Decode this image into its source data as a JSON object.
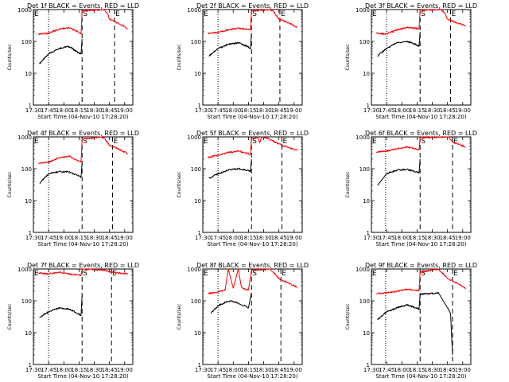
{
  "chart_data": [
    {
      "type": "line",
      "title": "Det 1f BLACK = Events, RED = LLD",
      "xlabel": "Start Time (04-Nov-10 17:28:20)",
      "ylabel": "Counts/sec",
      "xticks": [
        "17:30",
        "17:45",
        "18:00",
        "18:15",
        "18:30",
        "18:45",
        "19:00"
      ],
      "yticks": [
        "1",
        "10",
        "100",
        "1000"
      ],
      "yscale": "log",
      "ylim": [
        1,
        1000
      ],
      "markers": [
        {
          "time": "17:45",
          "style": "dotted",
          "label": ""
        },
        {
          "time": "18:18",
          "style": "dashed",
          "label": "S"
        },
        {
          "time": "18:50",
          "style": "dashed",
          "label": "E"
        }
      ],
      "start_label": "E",
      "series": [
        {
          "name": "Events",
          "color": "#000000",
          "x": [
            "17:36",
            "17:45",
            "17:55",
            "18:05",
            "18:14",
            "18:17",
            "18:18"
          ],
          "y": [
            20,
            40,
            60,
            70,
            45,
            40,
            120
          ]
        },
        {
          "name": "LLD",
          "color": "#ff0000",
          "x": [
            "17:35",
            "17:45",
            "17:55",
            "18:05",
            "18:14",
            "18:17",
            "18:18",
            "18:40",
            "18:43",
            "18:45",
            "18:55",
            "19:03"
          ],
          "y": [
            170,
            180,
            240,
            270,
            200,
            170,
            900,
            1000,
            750,
            500,
            350,
            250
          ]
        }
      ]
    },
    {
      "type": "line",
      "title": "Det 2f BLACK = Events, RED = LLD",
      "xlabel": "Start Time (04-Nov-10 17:28:20)",
      "ylabel": "Counts/sec",
      "xticks": [
        "17:30",
        "17:45",
        "18:00",
        "18:15",
        "18:30",
        "18:45",
        "19:00"
      ],
      "yticks": [
        "1",
        "10",
        "100",
        "1000"
      ],
      "yscale": "log",
      "ylim": [
        1,
        1000
      ],
      "markers": [
        {
          "time": "17:45",
          "style": "dotted",
          "label": ""
        },
        {
          "time": "18:18",
          "style": "dashed",
          "label": "S"
        },
        {
          "time": "18:46",
          "style": "dashed",
          "label": "E"
        }
      ],
      "start_label": "E",
      "series": [
        {
          "name": "Events",
          "color": "#000000",
          "x": [
            "17:36",
            "17:45",
            "17:55",
            "18:05",
            "18:14",
            "18:17",
            "18:18"
          ],
          "y": [
            35,
            60,
            80,
            90,
            70,
            60,
            180
          ]
        },
        {
          "name": "LLD",
          "color": "#ff0000",
          "x": [
            "17:35",
            "17:45",
            "17:55",
            "18:05",
            "18:14",
            "18:17",
            "18:18",
            "18:36",
            "18:40",
            "18:45",
            "18:55",
            "19:03"
          ],
          "y": [
            180,
            190,
            230,
            260,
            240,
            230,
            900,
            1000,
            850,
            500,
            380,
            280
          ]
        }
      ]
    },
    {
      "type": "line",
      "title": "Det 3f BLACK = Events, RED = LLD",
      "xlabel": "Start Time (04-Nov-10 17:28:20)",
      "ylabel": "Counts/sec",
      "xticks": [
        "17:30",
        "17:45",
        "18:00",
        "18:15",
        "18:30",
        "18:45",
        "19:00"
      ],
      "yticks": [
        "1",
        "10",
        "100",
        "1000"
      ],
      "yscale": "log",
      "ylim": [
        1,
        1000
      ],
      "markers": [
        {
          "time": "17:45",
          "style": "dotted",
          "label": ""
        },
        {
          "time": "18:18",
          "style": "dashed",
          "label": "S"
        },
        {
          "time": "18:48",
          "style": "dashed",
          "label": "E"
        }
      ],
      "start_label": "E",
      "series": [
        {
          "name": "Events",
          "color": "#000000",
          "x": [
            "17:36",
            "17:45",
            "17:55",
            "18:05",
            "18:14",
            "18:17",
            "18:18"
          ],
          "y": [
            35,
            60,
            90,
            100,
            80,
            70,
            200
          ]
        },
        {
          "name": "LLD",
          "color": "#ff0000",
          "x": [
            "17:35",
            "17:45",
            "17:55",
            "18:05",
            "18:14",
            "18:17",
            "18:18",
            "18:38",
            "18:42",
            "18:45",
            "18:55",
            "19:03"
          ],
          "y": [
            180,
            170,
            230,
            270,
            260,
            250,
            950,
            1000,
            800,
            500,
            380,
            300
          ]
        }
      ]
    },
    {
      "type": "line",
      "title": "Det 4f BLACK = Events, RED = LLD",
      "xlabel": "Start Time (04-Nov-10 17:28:20)",
      "ylabel": "Counts/sec",
      "xticks": [
        "17:30",
        "17:45",
        "18:00",
        "18:15",
        "18:30",
        "18:45",
        "19:00"
      ],
      "yticks": [
        "1",
        "10",
        "100",
        "1000"
      ],
      "yscale": "log",
      "ylim": [
        1,
        1000
      ],
      "markers": [
        {
          "time": "17:45",
          "style": "dotted",
          "label": ""
        },
        {
          "time": "18:18",
          "style": "dashed",
          "label": "S"
        },
        {
          "time": "18:48",
          "style": "dashed",
          "label": "E"
        }
      ],
      "start_label": "E",
      "series": [
        {
          "name": "Events",
          "color": "#000000",
          "x": [
            "17:36",
            "17:45",
            "17:55",
            "18:05",
            "18:14",
            "18:17",
            "18:18"
          ],
          "y": [
            35,
            70,
            80,
            80,
            60,
            55,
            150
          ]
        },
        {
          "name": "LLD",
          "color": "#ff0000",
          "x": [
            "17:35",
            "17:45",
            "17:55",
            "18:05",
            "18:14",
            "18:17",
            "18:18",
            "18:36",
            "18:40",
            "18:45",
            "18:55",
            "19:03"
          ],
          "y": [
            150,
            160,
            220,
            250,
            180,
            160,
            850,
            1000,
            900,
            550,
            400,
            300
          ]
        }
      ]
    },
    {
      "type": "line",
      "title": "Det 5f BLACK = Events, RED = LLD",
      "xlabel": "Start Time (04-Nov-10 17:28:20)",
      "ylabel": "Counts/sec",
      "xticks": [
        "17:30",
        "17:45",
        "18:00",
        "18:15",
        "18:30",
        "18:45",
        "19:00"
      ],
      "yticks": [
        "1",
        "10",
        "100",
        "1000"
      ],
      "yscale": "log",
      "ylim": [
        1,
        1000
      ],
      "markers": [
        {
          "time": "17:45",
          "style": "dotted",
          "label": ""
        },
        {
          "time": "18:18",
          "style": "dashed",
          "label": "S"
        },
        {
          "time": "18:48",
          "style": "dashed",
          "label": "E"
        }
      ],
      "start_label": "E",
      "series": [
        {
          "name": "Events",
          "color": "#000000",
          "x": [
            "17:36",
            "17:45",
            "17:55",
            "18:05",
            "18:14",
            "18:17",
            "18:18"
          ],
          "y": [
            50,
            70,
            90,
            100,
            90,
            80,
            200
          ]
        },
        {
          "name": "LLD",
          "color": "#ff0000",
          "x": [
            "17:35",
            "17:45",
            "17:55",
            "18:05",
            "18:14",
            "18:17",
            "18:18",
            "18:24",
            "18:26",
            "18:28",
            "18:32",
            "18:45",
            "18:55",
            "19:03"
          ],
          "y": [
            230,
            260,
            320,
            360,
            300,
            280,
            850,
            1000,
            650,
            1000,
            950,
            600,
            450,
            380
          ]
        }
      ]
    },
    {
      "type": "line",
      "title": "Det 6f BLACK = Events, RED = LLD",
      "xlabel": "Start Time (04-Nov-10 17:28:20)",
      "ylabel": "Counts/sec",
      "xticks": [
        "17:30",
        "17:45",
        "18:00",
        "18:15",
        "18:30",
        "18:45",
        "19:00"
      ],
      "yticks": [
        "1",
        "10",
        "100",
        "1000"
      ],
      "yscale": "log",
      "ylim": [
        1,
        1000
      ],
      "markers": [
        {
          "time": "17:44",
          "style": "dotted",
          "label": ""
        },
        {
          "time": "18:18",
          "style": "dashed",
          "label": "S"
        },
        {
          "time": "18:50",
          "style": "dashed",
          "label": "E"
        }
      ],
      "start_label": "E",
      "series": [
        {
          "name": "Events",
          "color": "#000000",
          "x": [
            "17:36",
            "17:45",
            "17:55",
            "18:05",
            "18:14",
            "18:17",
            "18:18"
          ],
          "y": [
            30,
            70,
            90,
            95,
            80,
            75,
            200
          ]
        },
        {
          "name": "LLD",
          "color": "#ff0000",
          "x": [
            "17:35",
            "17:45",
            "17:55",
            "18:05",
            "18:14",
            "18:17",
            "18:18",
            "18:46",
            "18:50",
            "18:55",
            "19:03"
          ],
          "y": [
            330,
            360,
            420,
            480,
            420,
            400,
            950,
            1000,
            700,
            600,
            480
          ]
        }
      ]
    },
    {
      "type": "line",
      "title": "Det 7f BLACK = Events, RED = LLD",
      "xlabel": "Start Time (04-Nov-10 17:28:20)",
      "ylabel": "Counts/sec",
      "xticks": [
        "17:30",
        "17:45",
        "18:00",
        "18:15",
        "18:30",
        "18:45",
        "19:00"
      ],
      "yticks": [
        "1",
        "10",
        "100",
        "1000"
      ],
      "yscale": "log",
      "ylim": [
        1,
        1000
      ],
      "markers": [
        {
          "time": "17:45",
          "style": "dotted",
          "label": ""
        },
        {
          "time": "18:18",
          "style": "dashed",
          "label": "S"
        },
        {
          "time": "18:47",
          "style": "dashed",
          "label": "E"
        }
      ],
      "start_label": "E",
      "series": [
        {
          "name": "Events",
          "color": "#000000",
          "x": [
            "17:36",
            "17:45",
            "17:55",
            "18:05",
            "18:14",
            "18:17",
            "18:18"
          ],
          "y": [
            30,
            45,
            60,
            55,
            40,
            35,
            150
          ]
        },
        {
          "name": "LLD",
          "color": "#ff0000",
          "x": [
            "17:35",
            "17:45",
            "17:55",
            "18:05",
            "18:14",
            "18:17",
            "18:18",
            "18:42",
            "18:45",
            "18:55",
            "19:03"
          ],
          "y": [
            750,
            700,
            800,
            700,
            650,
            640,
            1000,
            900,
            800,
            750,
            700
          ]
        }
      ]
    },
    {
      "type": "line",
      "title": "Det 8f BLACK = Events, RED = LLD",
      "xlabel": "Start Time (04-Nov-10 17:28:20)",
      "ylabel": "Counts/sec",
      "xticks": [
        "17:30",
        "17:45",
        "18:00",
        "18:15",
        "18:30",
        "18:45",
        "19:00"
      ],
      "yticks": [
        "1",
        "10",
        "100",
        "1000"
      ],
      "yscale": "log",
      "ylim": [
        1,
        1000
      ],
      "markers": [
        {
          "time": "17:45",
          "style": "dotted",
          "label": ""
        },
        {
          "time": "18:18",
          "style": "dashed",
          "label": "S"
        },
        {
          "time": "18:47",
          "style": "dashed",
          "label": "E"
        }
      ],
      "start_label": "E",
      "series": [
        {
          "name": "Events",
          "color": "#000000",
          "x": [
            "17:38",
            "17:45",
            "17:52",
            "17:59",
            "18:08",
            "18:12",
            "18:15",
            "18:18"
          ],
          "y": [
            40,
            70,
            90,
            100,
            75,
            70,
            60,
            180
          ]
        },
        {
          "name": "LLD",
          "color": "#ff0000",
          "x": [
            "17:35",
            "17:45",
            "17:52",
            "17:55",
            "18:00",
            "18:05",
            "18:08",
            "18:12",
            "18:15",
            "18:18",
            "18:36",
            "18:42",
            "18:45",
            "18:55",
            "19:03"
          ],
          "y": [
            170,
            190,
            220,
            1000,
            250,
            1000,
            270,
            230,
            220,
            900,
            1000,
            650,
            500,
            350,
            270
          ]
        }
      ]
    },
    {
      "type": "line",
      "title": "Det 9f BLACK = Events, RED = LLD",
      "xlabel": "Start Time (04-Nov-10 17:28:20)",
      "ylabel": "Counts/sec",
      "xticks": [
        "17:30",
        "17:45",
        "18:00",
        "18:15",
        "18:30",
        "18:45",
        "19:00"
      ],
      "yticks": [
        "1",
        "10",
        "100",
        "1000"
      ],
      "yscale": "log",
      "ylim": [
        1,
        1000
      ],
      "markers": [
        {
          "time": "17:44",
          "style": "dotted",
          "label": ""
        },
        {
          "time": "18:18",
          "style": "dashed",
          "label": "S"
        },
        {
          "time": "18:50",
          "style": "dashed",
          "label": "E"
        }
      ],
      "start_label": "E",
      "series": [
        {
          "name": "Events",
          "color": "#000000",
          "x": [
            "17:36",
            "17:45",
            "17:55",
            "18:05",
            "18:14",
            "18:17",
            "18:18",
            "18:36",
            "18:45",
            "18:48",
            "18:50"
          ],
          "y": [
            25,
            45,
            60,
            75,
            60,
            55,
            160,
            180,
            60,
            40,
            2
          ]
        },
        {
          "name": "LLD",
          "color": "#ff0000",
          "x": [
            "17:35",
            "17:45",
            "17:55",
            "18:05",
            "18:14",
            "18:17",
            "18:18",
            "18:36",
            "18:42",
            "18:45",
            "18:55",
            "19:03"
          ],
          "y": [
            170,
            180,
            200,
            230,
            220,
            210,
            800,
            1000,
            650,
            500,
            350,
            250
          ]
        }
      ]
    }
  ]
}
